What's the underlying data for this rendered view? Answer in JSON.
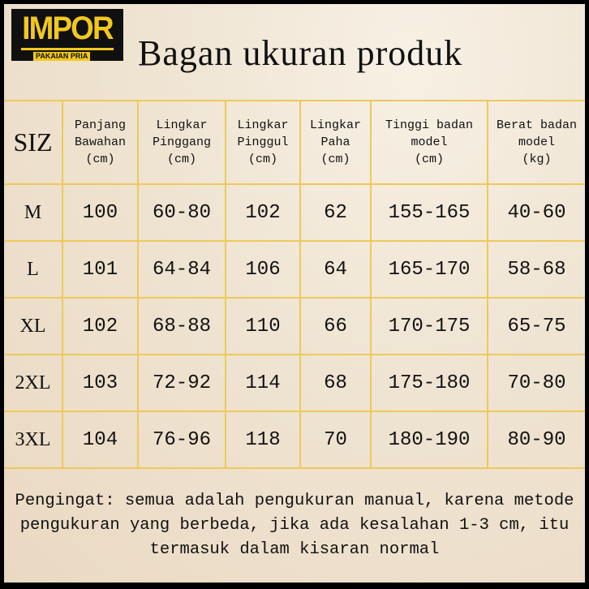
{
  "logo": {
    "brand": "IMPOR",
    "tagline": "PAKAIAN PRIA",
    "color": "#f2c81e"
  },
  "title": "Bagan ukuran produk",
  "table": {
    "headers": [
      {
        "lines": [
          "SIZ"
        ]
      },
      {
        "lines": [
          "Panjang",
          "Bawahan",
          "(cm)"
        ]
      },
      {
        "lines": [
          "Lingkar",
          "Pinggang",
          "(cm)"
        ]
      },
      {
        "lines": [
          "Lingkar",
          "Pinggul",
          "(cm)"
        ]
      },
      {
        "lines": [
          "Lingkar",
          "Paha",
          "(cm)"
        ]
      },
      {
        "lines": [
          "Tinggi badan",
          "model",
          "(cm)"
        ]
      },
      {
        "lines": [
          "Berat badan",
          "model",
          "(kg)"
        ]
      }
    ],
    "rows": [
      [
        "M",
        "100",
        "60-80",
        "102",
        "62",
        "155-165",
        "40-60"
      ],
      [
        "L",
        "101",
        "64-84",
        "106",
        "64",
        "165-170",
        "58-68"
      ],
      [
        "XL",
        "102",
        "68-88",
        "110",
        "66",
        "170-175",
        "65-75"
      ],
      [
        "2XL",
        "103",
        "72-92",
        "114",
        "68",
        "175-180",
        "70-80"
      ],
      [
        "3XL",
        "104",
        "76-96",
        "118",
        "70",
        "180-190",
        "80-90"
      ]
    ]
  },
  "note": [
    "Pengingat: semua adalah pengukuran manual, karena metode",
    "pengukuran yang berbeda, jika ada kesalahan 1-3 cm, itu",
    "termasuk dalam kisaran normal"
  ],
  "colors": {
    "grid": "#eec95a",
    "background": "#efe4d2"
  }
}
